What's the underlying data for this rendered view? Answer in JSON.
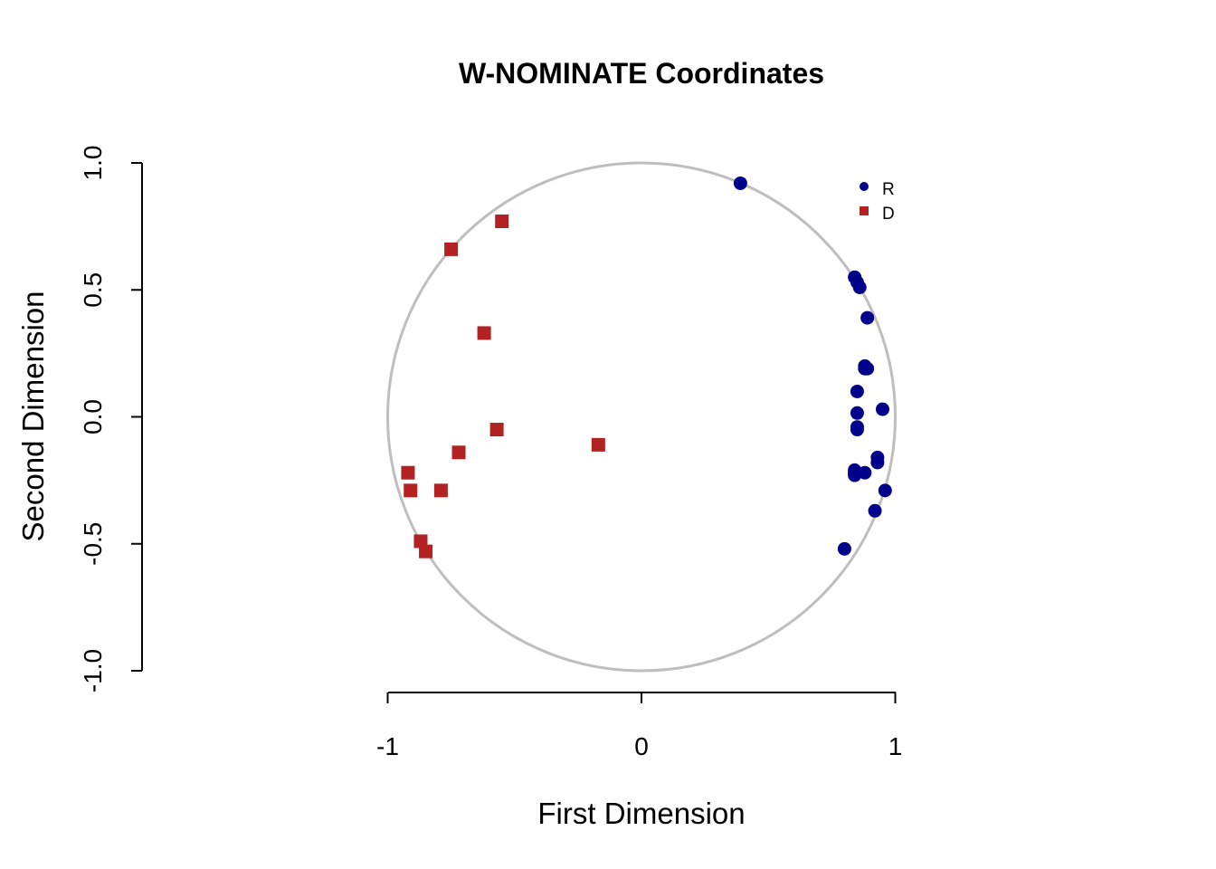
{
  "chart_data": {
    "type": "scatter",
    "title": "W-NOMINATE Coordinates",
    "xlabel": "First Dimension",
    "ylabel": "Second Dimension",
    "xlim": [
      -1,
      1
    ],
    "ylim": [
      -1,
      1
    ],
    "xticks": [
      -1,
      0,
      1
    ],
    "xtick_labels": [
      "-1",
      "0",
      "1"
    ],
    "yticks": [
      -1,
      -0.5,
      0,
      0.5,
      1
    ],
    "ytick_labels": [
      "-1.0",
      "-0.5",
      "0.0",
      "0.5",
      "1.0"
    ],
    "unit_circle": true,
    "circle_color": "#BEBEBE",
    "grid": false,
    "legend": {
      "position": "top-right",
      "entries": [
        "R",
        "D"
      ]
    },
    "series": [
      {
        "name": "R",
        "marker": "circle",
        "color": "#00008B",
        "points": [
          [
            0.39,
            0.92
          ],
          [
            0.84,
            0.55
          ],
          [
            0.85,
            0.53
          ],
          [
            0.86,
            0.51
          ],
          [
            0.89,
            0.39
          ],
          [
            0.88,
            0.2
          ],
          [
            0.89,
            0.19
          ],
          [
            0.88,
            0.19
          ],
          [
            0.85,
            0.1
          ],
          [
            0.95,
            0.03
          ],
          [
            0.85,
            0.015
          ],
          [
            0.85,
            -0.04
          ],
          [
            0.85,
            -0.05
          ],
          [
            0.93,
            -0.16
          ],
          [
            0.93,
            -0.18
          ],
          [
            0.84,
            -0.21
          ],
          [
            0.84,
            -0.22
          ],
          [
            0.88,
            -0.22
          ],
          [
            0.84,
            -0.23
          ],
          [
            0.96,
            -0.29
          ],
          [
            0.92,
            -0.37
          ],
          [
            0.8,
            -0.52
          ]
        ]
      },
      {
        "name": "D",
        "marker": "square",
        "color": "#B22222",
        "points": [
          [
            -0.55,
            0.77
          ],
          [
            -0.75,
            0.66
          ],
          [
            -0.62,
            0.33
          ],
          [
            -0.57,
            -0.05
          ],
          [
            -0.17,
            -0.11
          ],
          [
            -0.72,
            -0.14
          ],
          [
            -0.92,
            -0.22
          ],
          [
            -0.91,
            -0.29
          ],
          [
            -0.79,
            -0.29
          ],
          [
            -0.87,
            -0.49
          ],
          [
            -0.85,
            -0.53
          ]
        ]
      }
    ]
  }
}
